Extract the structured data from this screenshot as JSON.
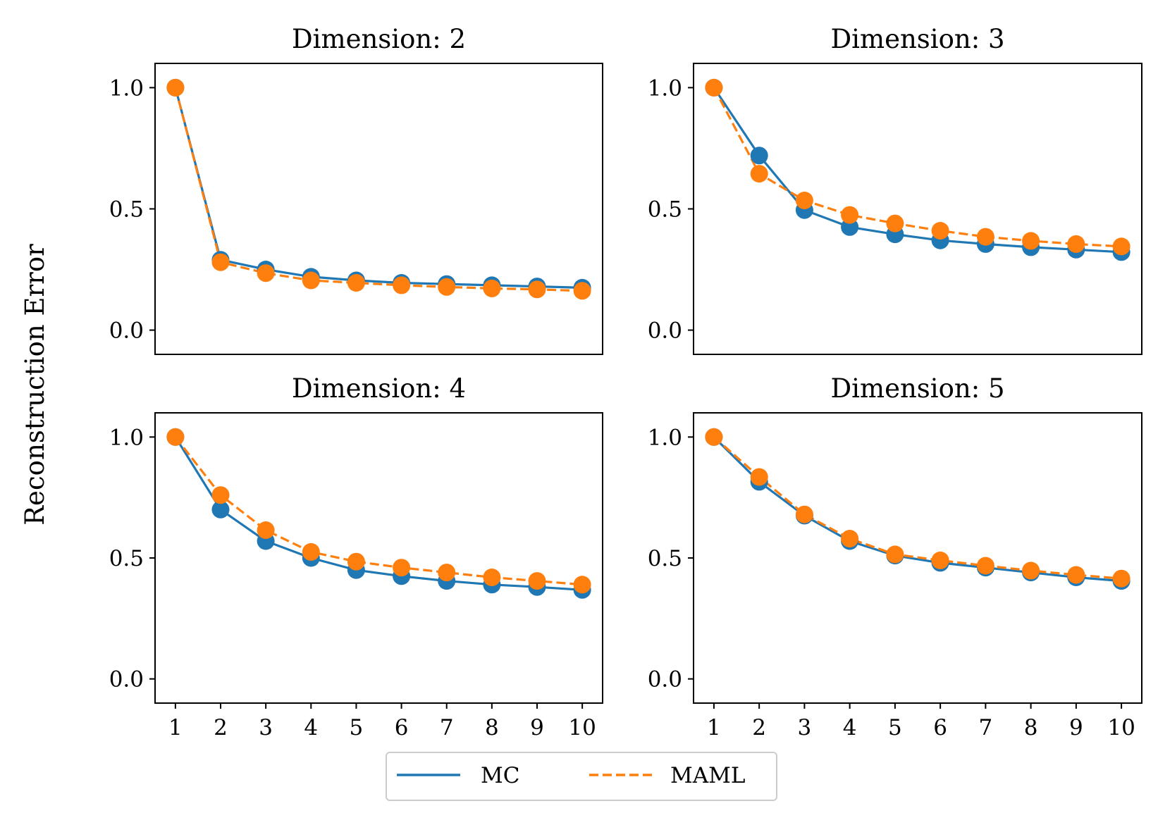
{
  "ylabel": "Reconstruction Error",
  "legend": [
    {
      "name": "MC",
      "color": "#1f77b4",
      "dash": "solid"
    },
    {
      "name": "MAML",
      "color": "#ff7f0e",
      "dash": "dashed"
    }
  ],
  "chart_data": [
    {
      "type": "line",
      "title": "Dimension: 2",
      "x": [
        1,
        2,
        3,
        4,
        5,
        6,
        7,
        8,
        9,
        10
      ],
      "xlabel": "",
      "ylabel": "Reconstruction Error",
      "ylim": [
        -0.1,
        1.1
      ],
      "yticks": [
        0.0,
        0.5,
        1.0
      ],
      "ytick_labels": [
        "0.0",
        "0.5",
        "1.0"
      ],
      "xticks_visible": false,
      "series": [
        {
          "name": "MC",
          "color": "#1f77b4",
          "values": [
            1.0,
            0.29,
            0.25,
            0.22,
            0.205,
            0.195,
            0.19,
            0.185,
            0.18,
            0.175
          ]
        },
        {
          "name": "MAML",
          "color": "#ff7f0e",
          "values": [
            1.0,
            0.28,
            0.235,
            0.205,
            0.195,
            0.185,
            0.178,
            0.172,
            0.168,
            0.162
          ]
        }
      ]
    },
    {
      "type": "line",
      "title": "Dimension: 3",
      "x": [
        1,
        2,
        3,
        4,
        5,
        6,
        7,
        8,
        9,
        10
      ],
      "xlabel": "",
      "ylabel": "",
      "ylim": [
        -0.1,
        1.1
      ],
      "yticks": [
        0.0,
        0.5,
        1.0
      ],
      "ytick_labels": [
        "0.0",
        "0.5",
        "1.0"
      ],
      "xticks_visible": false,
      "series": [
        {
          "name": "MC",
          "color": "#1f77b4",
          "values": [
            1.0,
            0.72,
            0.495,
            0.425,
            0.395,
            0.37,
            0.355,
            0.342,
            0.332,
            0.322
          ]
        },
        {
          "name": "MAML",
          "color": "#ff7f0e",
          "values": [
            1.0,
            0.645,
            0.535,
            0.475,
            0.44,
            0.41,
            0.385,
            0.368,
            0.355,
            0.345
          ]
        }
      ]
    },
    {
      "type": "line",
      "title": "Dimension: 4",
      "x": [
        1,
        2,
        3,
        4,
        5,
        6,
        7,
        8,
        9,
        10
      ],
      "xlabel": "",
      "ylabel": "",
      "ylim": [
        -0.1,
        1.1
      ],
      "yticks": [
        0.0,
        0.5,
        1.0
      ],
      "ytick_labels": [
        "0.0",
        "0.5",
        "1.0"
      ],
      "xticks_visible": true,
      "xtick_labels": [
        "1",
        "2",
        "3",
        "4",
        "5",
        "6",
        "7",
        "8",
        "9",
        "10"
      ],
      "series": [
        {
          "name": "MC",
          "color": "#1f77b4",
          "values": [
            1.0,
            0.7,
            0.57,
            0.5,
            0.45,
            0.425,
            0.405,
            0.39,
            0.38,
            0.368
          ]
        },
        {
          "name": "MAML",
          "color": "#ff7f0e",
          "values": [
            1.0,
            0.76,
            0.615,
            0.525,
            0.485,
            0.46,
            0.44,
            0.42,
            0.405,
            0.39
          ]
        }
      ]
    },
    {
      "type": "line",
      "title": "Dimension: 5",
      "x": [
        1,
        2,
        3,
        4,
        5,
        6,
        7,
        8,
        9,
        10
      ],
      "xlabel": "",
      "ylabel": "",
      "ylim": [
        -0.1,
        1.1
      ],
      "yticks": [
        0.0,
        0.5,
        1.0
      ],
      "ytick_labels": [
        "0.0",
        "0.5",
        "1.0"
      ],
      "xticks_visible": true,
      "xtick_labels": [
        "1",
        "2",
        "3",
        "4",
        "5",
        "6",
        "7",
        "8",
        "9",
        "10"
      ],
      "series": [
        {
          "name": "MC",
          "color": "#1f77b4",
          "values": [
            1.0,
            0.815,
            0.675,
            0.57,
            0.51,
            0.48,
            0.46,
            0.44,
            0.42,
            0.405
          ]
        },
        {
          "name": "MAML",
          "color": "#ff7f0e",
          "values": [
            1.0,
            0.835,
            0.68,
            0.58,
            0.515,
            0.49,
            0.468,
            0.448,
            0.43,
            0.415
          ]
        }
      ]
    }
  ]
}
